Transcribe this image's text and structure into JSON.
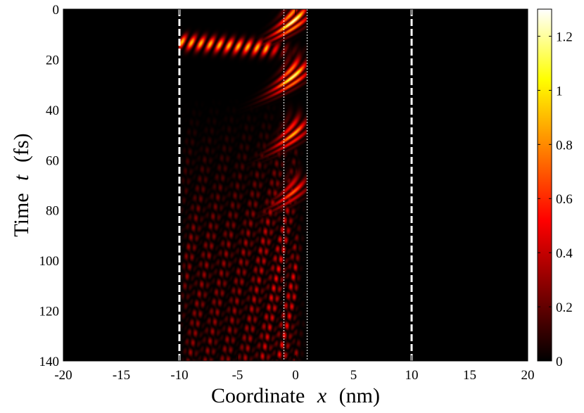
{
  "chart_data": {
    "type": "heatmap",
    "title": "",
    "xlabel": {
      "prefix": "Coordinate",
      "symbol": "x",
      "unit": "(nm)"
    },
    "ylabel": {
      "prefix": "Time",
      "symbol": "t",
      "unit": "(fs)"
    },
    "xlim": [
      -20,
      20
    ],
    "ylim": [
      140,
      0
    ],
    "y_axis_inverted": true,
    "x_ticks": [
      -20,
      -15,
      -10,
      -5,
      0,
      5,
      10,
      15,
      20
    ],
    "y_ticks": [
      0,
      20,
      40,
      60,
      80,
      100,
      120,
      140
    ],
    "colorbar": {
      "colormap": "hot",
      "range": [
        0,
        1.3
      ],
      "ticks": [
        0,
        0.2,
        0.4,
        0.6,
        0.8,
        1,
        1.2
      ],
      "colors": [
        "#000000",
        "#800000",
        "#ff0000",
        "#ff8000",
        "#ffff00",
        "#ffffff"
      ]
    },
    "boundaries": [
      {
        "x": -10,
        "style": "dashed",
        "color": "#ffffff"
      },
      {
        "x": -1,
        "style": "dotted",
        "color": "#ffffff"
      },
      {
        "x": 1,
        "style": "dotted",
        "color": "#ffffff"
      },
      {
        "x": 10,
        "style": "dashed",
        "color": "#ffffff"
      }
    ],
    "features": [
      {
        "kind": "bright-lobe",
        "t": [
          0,
          10
        ],
        "x": [
          -2,
          0.5
        ],
        "peak": 1.3
      },
      {
        "kind": "reflected-wave",
        "t": [
          8,
          18
        ],
        "x": [
          -10,
          -3
        ],
        "peak": 0.9
      },
      {
        "kind": "bright-lobe",
        "t": [
          22,
          32
        ],
        "x": [
          -3,
          0.5
        ],
        "peak": 1.2
      },
      {
        "kind": "bright-lobe",
        "t": [
          45,
          55
        ],
        "x": [
          -2,
          0.5
        ],
        "peak": 0.9
      },
      {
        "kind": "bright-lobe",
        "t": [
          68,
          78
        ],
        "x": [
          -2,
          0.5
        ],
        "peak": 0.7
      },
      {
        "kind": "interference-region",
        "t": [
          35,
          140
        ],
        "x": [
          -10,
          0.5
        ],
        "peak": 0.5
      }
    ]
  }
}
